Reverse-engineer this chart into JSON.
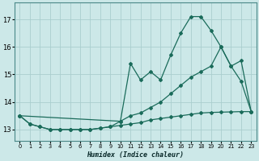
{
  "xlabel": "Humidex (Indice chaleur)",
  "background_color": "#cce8e8",
  "grid_color": "#aacece",
  "line_color": "#1a6b5a",
  "xlim": [
    -0.5,
    23.5
  ],
  "ylim": [
    12.6,
    17.6
  ],
  "yticks": [
    13,
    14,
    15,
    16,
    17
  ],
  "xticks": [
    0,
    1,
    2,
    3,
    4,
    5,
    6,
    7,
    8,
    9,
    10,
    11,
    12,
    13,
    14,
    15,
    16,
    17,
    18,
    19,
    20,
    21,
    22,
    23
  ],
  "series_min_x": [
    0,
    1,
    2,
    3,
    4,
    5,
    6,
    7,
    8,
    9,
    10,
    11,
    12,
    13,
    14,
    15,
    16,
    17,
    18,
    19,
    20,
    21,
    22,
    23
  ],
  "series_min_y": [
    13.5,
    13.2,
    13.1,
    13.0,
    13.0,
    13.0,
    13.0,
    13.0,
    13.05,
    13.1,
    13.15,
    13.2,
    13.25,
    13.35,
    13.4,
    13.45,
    13.5,
    13.55,
    13.6,
    13.62,
    13.63,
    13.64,
    13.65,
    13.65
  ],
  "series_mid_x": [
    0,
    1,
    2,
    3,
    4,
    5,
    6,
    7,
    8,
    9,
    10,
    11,
    12,
    13,
    14,
    15,
    16,
    17,
    18,
    19,
    20,
    21,
    22,
    23
  ],
  "series_mid_y": [
    13.5,
    13.2,
    13.1,
    13.0,
    13.0,
    13.0,
    13.0,
    13.0,
    13.05,
    13.1,
    13.3,
    13.5,
    13.6,
    13.8,
    14.0,
    14.3,
    14.6,
    14.9,
    15.1,
    15.3,
    16.0,
    15.3,
    15.5,
    13.65
  ],
  "series_max_x": [
    0,
    10,
    11,
    12,
    13,
    14,
    15,
    16,
    17,
    18,
    19,
    20,
    21,
    22,
    23
  ],
  "series_max_y": [
    13.5,
    13.3,
    15.4,
    14.8,
    15.1,
    14.8,
    15.7,
    16.5,
    17.1,
    17.1,
    16.6,
    16.0,
    15.3,
    14.75,
    13.65
  ]
}
